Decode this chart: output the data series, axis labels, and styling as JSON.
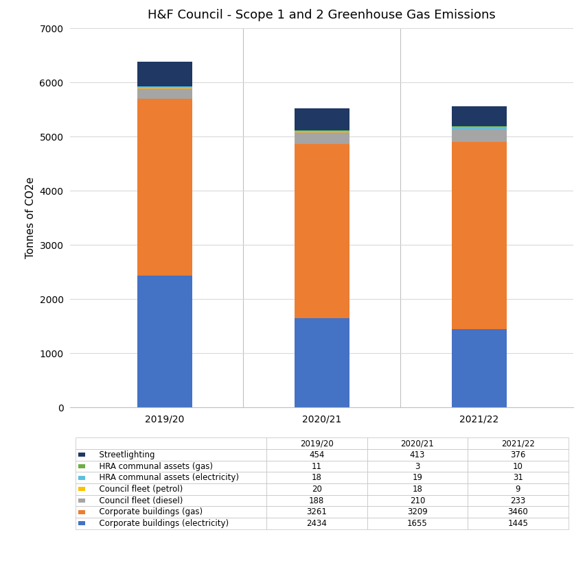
{
  "title": "H&F Council - Scope 1 and 2 Greenhouse Gas Emissions",
  "ylabel": "Tonnes of CO2e",
  "years": [
    "2019/20",
    "2020/21",
    "2021/22"
  ],
  "categories": [
    "Corporate buildings (electricity)",
    "Corporate buildings (gas)",
    "Council fleet (diesel)",
    "Council fleet (petrol)",
    "HRA communal assets (electricity)",
    "HRA communal assets (gas)",
    "Streetlighting"
  ],
  "colors": [
    "#4472c4",
    "#ed7d31",
    "#a5a5a5",
    "#ffc000",
    "#5bc0de",
    "#70ad47",
    "#1f3864"
  ],
  "values": {
    "Corporate buildings (electricity)": [
      2434,
      1655,
      1445
    ],
    "Corporate buildings (gas)": [
      3261,
      3209,
      3460
    ],
    "Council fleet (diesel)": [
      188,
      210,
      233
    ],
    "Council fleet (petrol)": [
      20,
      18,
      9
    ],
    "HRA communal assets (electricity)": [
      18,
      19,
      31
    ],
    "HRA communal assets (gas)": [
      11,
      3,
      10
    ],
    "Streetlighting": [
      454,
      413,
      376
    ]
  },
  "table_rows": [
    {
      "label": "Streetlighting",
      "color": "#1f3864",
      "values": [
        454,
        413,
        376
      ]
    },
    {
      "label": "HRA communal assets (gas)",
      "color": "#70ad47",
      "values": [
        11,
        3,
        10
      ]
    },
    {
      "label": "HRA communal assets (electricity)",
      "color": "#5bc0de",
      "values": [
        18,
        19,
        31
      ]
    },
    {
      "label": "Council fleet (petrol)",
      "color": "#ffc000",
      "values": [
        20,
        18,
        9
      ]
    },
    {
      "label": "Council fleet (diesel)",
      "color": "#a5a5a5",
      "values": [
        188,
        210,
        233
      ]
    },
    {
      "label": "Corporate buildings (gas)",
      "color": "#ed7d31",
      "values": [
        3261,
        3209,
        3460
      ]
    },
    {
      "label": "Corporate buildings (electricity)",
      "color": "#4472c4",
      "values": [
        2434,
        1655,
        1445
      ]
    }
  ],
  "ylim": [
    0,
    7000
  ],
  "yticks": [
    0,
    1000,
    2000,
    3000,
    4000,
    5000,
    6000,
    7000
  ],
  "bar_width": 0.35,
  "background_color": "#ffffff",
  "grid_color": "#d9d9d9",
  "title_fontsize": 13,
  "axis_fontsize": 11,
  "tick_fontsize": 10,
  "table_fontsize": 8.5
}
